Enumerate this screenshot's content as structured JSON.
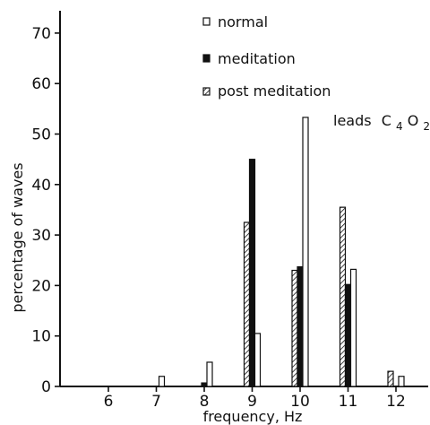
{
  "chart_data": {
    "type": "bar",
    "xlabel": "frequency, Hz",
    "ylabel": "percentage of waves",
    "ylim": [
      0,
      70
    ],
    "y_ticks": [
      "0",
      "10",
      "20",
      "30",
      "40",
      "50",
      "60",
      "70"
    ],
    "categories": [
      "6",
      "7",
      "8",
      "9",
      "10",
      "11",
      "12"
    ],
    "series": [
      {
        "name": "post meditation",
        "pattern": "hatched",
        "values": [
          0,
          0,
          0,
          32.5,
          23,
          35.5,
          3
        ]
      },
      {
        "name": "meditation",
        "pattern": "solid",
        "values": [
          0,
          0,
          0.7,
          45,
          23.7,
          20.2,
          0
        ]
      },
      {
        "name": "normal",
        "pattern": "open",
        "values": [
          0,
          2,
          4.8,
          10.5,
          53.3,
          23.2,
          2
        ]
      }
    ],
    "legend_position": "top-right",
    "annotation": {
      "text": "leads",
      "sub1_base": "C",
      "sub1_index": "4",
      "sub2_base": "O",
      "sub2_index": "2"
    }
  }
}
